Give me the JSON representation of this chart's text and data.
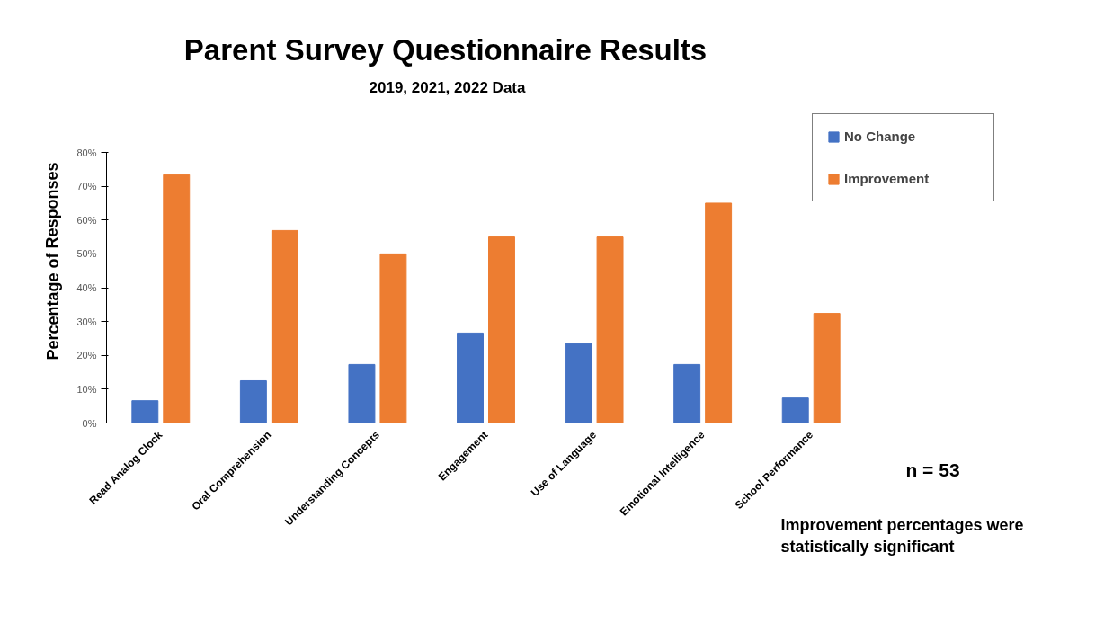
{
  "chart_data": {
    "type": "bar",
    "title": "Parent Survey Questionnaire Results",
    "subtitle": "2019, 2021, 2022 Data",
    "ylabel": "Percentage of Responses",
    "categories": [
      "Read Analog Clock",
      "Oral Comprehension",
      "Understanding Concepts",
      "Engagement",
      "Use of Language",
      "Emotional Intelligence",
      "School Performance"
    ],
    "series": [
      {
        "name": "No Change",
        "color": "#4472c4",
        "values": [
          6.6,
          12.5,
          17.3,
          26.6,
          23.4,
          17.3,
          7.4
        ]
      },
      {
        "name": "Improvement",
        "color": "#ed7d31",
        "values": [
          73.4,
          56.9,
          50,
          55,
          55,
          65,
          32.4
        ]
      }
    ],
    "ylim": [
      0,
      80
    ],
    "yticks": [
      {
        "value": 0,
        "label": "0%"
      },
      {
        "value": 10,
        "label": "10%"
      },
      {
        "value": 20,
        "label": "20%"
      },
      {
        "value": 30,
        "label": "30%"
      },
      {
        "value": 40,
        "label": "40%"
      },
      {
        "value": 50,
        "label": "50%"
      },
      {
        "value": 60,
        "label": "60%"
      },
      {
        "value": 70,
        "label": "70%"
      },
      {
        "value": 80,
        "label": "80%"
      }
    ],
    "grid": false,
    "legend": "top right",
    "annotations": [
      "n = 53",
      "Improvement percentages were statistically significant"
    ]
  }
}
